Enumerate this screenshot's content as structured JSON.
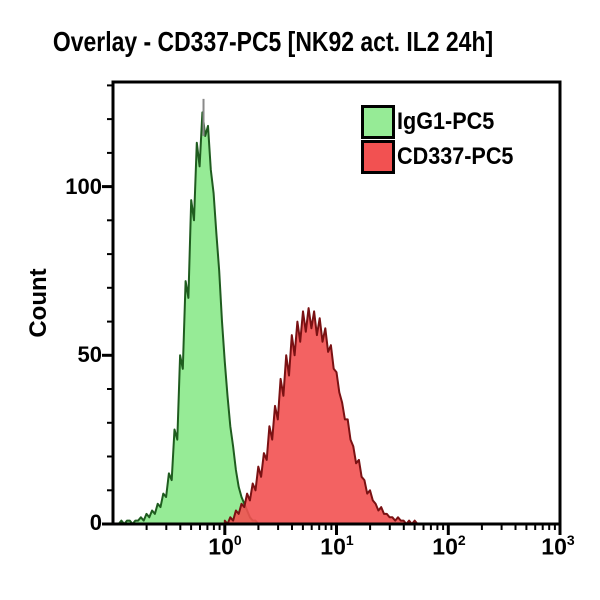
{
  "title": "Overlay - CD337-PC5 [NK92 act. IL2 24h]",
  "y_axis": {
    "label": "Count",
    "tick_labels": [
      "100",
      "50",
      "0"
    ]
  },
  "x_axis": {
    "tick_labels": [
      {
        "base": "10",
        "exp": "0"
      },
      {
        "base": "10",
        "exp": "1"
      },
      {
        "base": "10",
        "exp": "2"
      },
      {
        "base": "10",
        "exp": "3"
      }
    ]
  },
  "legend": {
    "items": [
      {
        "label": "IgG1-PC5"
      },
      {
        "label": "CD337-PC5"
      }
    ]
  },
  "chart_data": {
    "type": "area",
    "subtype": "flow-cytometry-histogram-overlay",
    "title": "Overlay - CD337-PC5 [NK92 act. IL2 24h]",
    "xlabel": "",
    "ylabel": "Count",
    "x_scale": "log10",
    "xlim_log10": [
      -1,
      3
    ],
    "ylim": [
      0,
      131
    ],
    "y_major_ticks": [
      0,
      50,
      100
    ],
    "y_minor_tick_step": 10,
    "x_major_ticks_log10": [
      0,
      1,
      2,
      3
    ],
    "grid": false,
    "legend_position": "top-right",
    "frame_color": "#000000",
    "background": "#ffffff",
    "series": [
      {
        "name": "IgG1-PC5",
        "fill": "#96EB96",
        "fill_opacity": 1,
        "stroke": "#1F5C1F",
        "peak": {
          "x": 0.63,
          "count": 122
        },
        "points_log10x_count": [
          [
            -0.95,
            0
          ],
          [
            -0.925,
            1
          ],
          [
            -0.9,
            0
          ],
          [
            -0.875,
            1
          ],
          [
            -0.85,
            1
          ],
          [
            -0.825,
            0
          ],
          [
            -0.8,
            1
          ],
          [
            -0.775,
            1
          ],
          [
            -0.75,
            2
          ],
          [
            -0.725,
            1
          ],
          [
            -0.7,
            3
          ],
          [
            -0.675,
            2
          ],
          [
            -0.65,
            4
          ],
          [
            -0.625,
            3
          ],
          [
            -0.6,
            6
          ],
          [
            -0.575,
            5
          ],
          [
            -0.55,
            9
          ],
          [
            -0.525,
            8
          ],
          [
            -0.5,
            15
          ],
          [
            -0.475,
            13
          ],
          [
            -0.45,
            28
          ],
          [
            -0.425,
            25
          ],
          [
            -0.4,
            50
          ],
          [
            -0.375,
            46
          ],
          [
            -0.35,
            72
          ],
          [
            -0.325,
            67
          ],
          [
            -0.3,
            96
          ],
          [
            -0.275,
            90
          ],
          [
            -0.25,
            113
          ],
          [
            -0.225,
            106
          ],
          [
            -0.2,
            122
          ],
          [
            -0.175,
            115
          ],
          [
            -0.15,
            118
          ],
          [
            -0.125,
            105
          ],
          [
            -0.1,
            98
          ],
          [
            -0.075,
            86
          ],
          [
            -0.05,
            75
          ],
          [
            -0.025,
            60
          ],
          [
            0,
            48
          ],
          [
            0.025,
            38
          ],
          [
            0.05,
            29
          ],
          [
            0.075,
            23
          ],
          [
            0.1,
            16
          ],
          [
            0.125,
            11
          ],
          [
            0.15,
            8
          ],
          [
            0.175,
            6
          ],
          [
            0.2,
            4
          ],
          [
            0.225,
            2
          ],
          [
            0.25,
            1
          ],
          [
            0.275,
            1
          ],
          [
            0.3,
            0
          ]
        ]
      },
      {
        "name": "CD337-PC5",
        "fill": "#F25151",
        "fill_opacity": 0.9,
        "stroke": "#7A1113",
        "peak": {
          "x": 5.8,
          "count": 64
        },
        "points_log10x_count": [
          [
            0,
            1
          ],
          [
            0.025,
            0
          ],
          [
            0.05,
            2
          ],
          [
            0.075,
            1
          ],
          [
            0.1,
            4
          ],
          [
            0.125,
            3
          ],
          [
            0.15,
            6
          ],
          [
            0.175,
            5
          ],
          [
            0.2,
            9
          ],
          [
            0.225,
            7
          ],
          [
            0.25,
            12
          ],
          [
            0.275,
            10
          ],
          [
            0.3,
            17
          ],
          [
            0.325,
            14
          ],
          [
            0.35,
            21
          ],
          [
            0.375,
            19
          ],
          [
            0.4,
            29
          ],
          [
            0.425,
            25
          ],
          [
            0.45,
            35
          ],
          [
            0.475,
            31
          ],
          [
            0.5,
            43
          ],
          [
            0.525,
            38
          ],
          [
            0.55,
            50
          ],
          [
            0.575,
            44
          ],
          [
            0.6,
            56
          ],
          [
            0.625,
            50
          ],
          [
            0.65,
            60
          ],
          [
            0.675,
            54
          ],
          [
            0.7,
            63
          ],
          [
            0.725,
            57
          ],
          [
            0.75,
            64
          ],
          [
            0.775,
            58
          ],
          [
            0.8,
            63
          ],
          [
            0.825,
            56
          ],
          [
            0.85,
            61
          ],
          [
            0.875,
            54
          ],
          [
            0.9,
            58
          ],
          [
            0.925,
            51
          ],
          [
            0.95,
            53
          ],
          [
            0.975,
            46
          ],
          [
            1.0,
            45
          ],
          [
            1.025,
            39
          ],
          [
            1.05,
            36
          ],
          [
            1.075,
            31
          ],
          [
            1.1,
            31
          ],
          [
            1.125,
            25
          ],
          [
            1.15,
            23
          ],
          [
            1.175,
            18
          ],
          [
            1.2,
            19
          ],
          [
            1.225,
            14
          ],
          [
            1.25,
            13
          ],
          [
            1.275,
            9
          ],
          [
            1.3,
            10
          ],
          [
            1.325,
            7
          ],
          [
            1.35,
            6
          ],
          [
            1.375,
            4
          ],
          [
            1.4,
            5
          ],
          [
            1.425,
            3
          ],
          [
            1.45,
            3
          ],
          [
            1.475,
            2
          ],
          [
            1.5,
            2
          ],
          [
            1.525,
            1
          ],
          [
            1.55,
            2
          ],
          [
            1.575,
            1
          ],
          [
            1.6,
            1
          ],
          [
            1.625,
            0
          ],
          [
            1.65,
            1
          ],
          [
            1.675,
            0
          ],
          [
            1.7,
            1
          ],
          [
            1.725,
            0
          ],
          [
            1.75,
            0
          ]
        ]
      }
    ],
    "peak_marker": {
      "log10x": -0.19,
      "count_from": 115,
      "count_to": 126,
      "color": "#8A8A8A"
    }
  }
}
